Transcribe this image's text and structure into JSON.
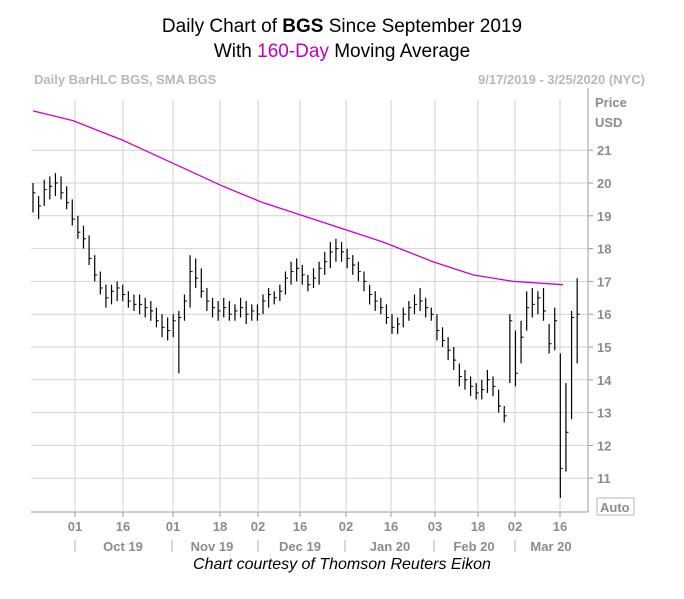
{
  "header": {
    "title_prefix": "Daily Chart of ",
    "ticker": "BGS",
    "title_suffix": " Since September 2019",
    "subtitle_prefix": "With ",
    "subtitle_highlight": "160-Day",
    "subtitle_suffix": " Moving Average",
    "highlight_color": "#c000c0"
  },
  "meta": {
    "left": "Daily BarHLC BGS, SMA BGS",
    "right": "9/17/2019 - 3/25/2020 (NYC)"
  },
  "credit": "Chart courtesy of Thomson Reuters Eikon",
  "chart_data": {
    "type": "bar-hlc",
    "y_axis": {
      "title_line1": "Price",
      "title_line2": "USD",
      "ticks": [
        "21",
        "20",
        "19",
        "18",
        "17",
        "16",
        "15",
        "14",
        "13",
        "12",
        "11"
      ],
      "ylim": [
        10,
        22
      ],
      "auto_label": "Auto"
    },
    "x_axis": {
      "day_ticks": [
        "01",
        "16",
        "01",
        "18",
        "02",
        "16",
        "02",
        "16",
        "03",
        "18",
        "02",
        "16"
      ],
      "month_labels": [
        "Oct 19",
        "Nov 19",
        "Dec 19",
        "Jan 20",
        "Feb 20",
        "Mar 20"
      ]
    },
    "grid": true,
    "price_color": "#000000",
    "ma_color": "#cc00cc",
    "ma_series": {
      "name": "SMA",
      "points": [
        [
          0,
          22.2
        ],
        [
          40,
          21.9
        ],
        [
          90,
          21.3
        ],
        [
          140,
          20.6
        ],
        [
          190,
          19.9
        ],
        [
          230,
          19.4
        ],
        [
          270,
          19.0
        ],
        [
          310,
          18.6
        ],
        [
          350,
          18.2
        ],
        [
          400,
          17.6
        ],
        [
          440,
          17.2
        ],
        [
          480,
          17.0
        ],
        [
          530,
          16.9
        ]
      ]
    },
    "bars": [
      [
        0,
        20.0,
        19.1,
        19.7
      ],
      [
        3,
        19.6,
        18.9,
        19.3
      ],
      [
        6,
        20.1,
        19.3,
        19.8
      ],
      [
        9,
        20.2,
        19.5,
        19.9
      ],
      [
        12,
        20.3,
        19.6,
        20.0
      ],
      [
        15,
        20.2,
        19.5,
        19.7
      ],
      [
        18,
        19.9,
        19.2,
        19.4
      ],
      [
        21,
        19.5,
        18.7,
        18.9
      ],
      [
        24,
        19.0,
        18.3,
        18.5
      ],
      [
        27,
        18.7,
        18.0,
        18.3
      ],
      [
        30,
        18.4,
        17.5,
        17.7
      ],
      [
        33,
        17.8,
        17.0,
        17.2
      ],
      [
        36,
        17.3,
        16.6,
        16.8
      ],
      [
        39,
        16.9,
        16.2,
        16.5
      ],
      [
        42,
        16.9,
        16.3,
        16.7
      ],
      [
        45,
        17.0,
        16.4,
        16.8
      ],
      [
        48,
        16.9,
        16.4,
        16.6
      ],
      [
        51,
        16.7,
        16.2,
        16.4
      ],
      [
        54,
        16.6,
        16.1,
        16.3
      ],
      [
        57,
        16.6,
        16.0,
        16.3
      ],
      [
        60,
        16.5,
        15.9,
        16.2
      ],
      [
        63,
        16.4,
        15.8,
        16.1
      ],
      [
        66,
        16.2,
        15.6,
        15.8
      ],
      [
        69,
        16.0,
        15.3,
        15.6
      ],
      [
        72,
        15.9,
        15.2,
        15.5
      ],
      [
        75,
        16.0,
        15.3,
        15.8
      ],
      [
        78,
        16.1,
        14.2,
        15.9
      ],
      [
        81,
        16.6,
        15.8,
        16.4
      ],
      [
        84,
        17.8,
        16.2,
        17.3
      ],
      [
        87,
        17.7,
        16.8,
        17.1
      ],
      [
        90,
        17.4,
        16.5,
        16.7
      ],
      [
        93,
        16.8,
        16.1,
        16.4
      ],
      [
        96,
        16.5,
        15.9,
        16.2
      ],
      [
        99,
        16.4,
        15.8,
        16.1
      ],
      [
        102,
        16.5,
        15.9,
        16.2
      ],
      [
        105,
        16.4,
        15.8,
        16.0
      ],
      [
        108,
        16.3,
        15.8,
        16.1
      ],
      [
        111,
        16.5,
        15.9,
        16.2
      ],
      [
        114,
        16.4,
        15.7,
        16.0
      ],
      [
        117,
        16.3,
        15.8,
        16.1
      ],
      [
        120,
        16.3,
        15.8,
        16.0
      ],
      [
        123,
        16.6,
        16.0,
        16.4
      ],
      [
        126,
        16.8,
        16.2,
        16.6
      ],
      [
        129,
        16.7,
        16.3,
        16.5
      ],
      [
        132,
        16.9,
        16.4,
        16.7
      ],
      [
        135,
        17.3,
        16.6,
        17.1
      ],
      [
        138,
        17.6,
        16.9,
        17.3
      ],
      [
        141,
        17.7,
        17.0,
        17.4
      ],
      [
        144,
        17.5,
        16.9,
        17.2
      ],
      [
        147,
        17.2,
        16.7,
        16.9
      ],
      [
        150,
        17.4,
        16.8,
        17.1
      ],
      [
        153,
        17.6,
        16.9,
        17.4
      ],
      [
        156,
        17.9,
        17.2,
        17.6
      ],
      [
        159,
        18.2,
        17.4,
        17.9
      ],
      [
        162,
        18.3,
        17.6,
        18.0
      ],
      [
        165,
        18.2,
        17.6,
        17.9
      ],
      [
        168,
        18.0,
        17.4,
        17.7
      ],
      [
        171,
        17.8,
        17.2,
        17.5
      ],
      [
        174,
        17.6,
        17.0,
        17.3
      ],
      [
        177,
        17.3,
        16.7,
        17.0
      ],
      [
        180,
        16.9,
        16.3,
        16.6
      ],
      [
        183,
        16.7,
        16.1,
        16.4
      ],
      [
        186,
        16.5,
        16.0,
        16.2
      ],
      [
        189,
        16.3,
        15.7,
        15.9
      ],
      [
        192,
        16.0,
        15.4,
        15.6
      ],
      [
        195,
        15.9,
        15.4,
        15.7
      ],
      [
        198,
        16.2,
        15.6,
        16.0
      ],
      [
        201,
        16.4,
        15.8,
        16.2
      ],
      [
        204,
        16.6,
        16.0,
        16.3
      ],
      [
        207,
        16.8,
        16.1,
        16.4
      ],
      [
        210,
        16.5,
        15.9,
        16.2
      ],
      [
        213,
        16.2,
        15.8,
        16.0
      ],
      [
        216,
        16.0,
        15.2,
        15.5
      ],
      [
        219,
        15.6,
        15.0,
        15.2
      ],
      [
        222,
        15.3,
        14.6,
        14.9
      ],
      [
        225,
        15.0,
        14.3,
        14.6
      ],
      [
        228,
        14.5,
        13.8,
        14.1
      ],
      [
        231,
        14.3,
        13.7,
        14.0
      ],
      [
        234,
        14.1,
        13.5,
        13.8
      ],
      [
        237,
        13.9,
        13.4,
        13.6
      ],
      [
        240,
        14.0,
        13.4,
        13.7
      ],
      [
        243,
        14.3,
        13.6,
        14.0
      ],
      [
        246,
        14.1,
        13.5,
        13.8
      ],
      [
        249,
        13.7,
        13.0,
        13.2
      ],
      [
        252,
        13.2,
        12.7,
        12.9
      ],
      [
        255,
        16.0,
        13.9,
        15.8
      ],
      [
        258,
        15.5,
        13.8,
        14.2
      ],
      [
        261,
        15.8,
        14.5,
        15.3
      ],
      [
        264,
        16.7,
        15.5,
        16.2
      ],
      [
        267,
        16.8,
        15.9,
        16.3
      ],
      [
        270,
        16.7,
        16.0,
        16.5
      ],
      [
        273,
        16.8,
        15.8,
        16.1
      ],
      [
        276,
        15.7,
        14.8,
        15.1
      ],
      [
        279,
        16.2,
        14.9,
        15.8
      ],
      [
        282,
        14.8,
        10.4,
        11.3
      ],
      [
        285,
        13.9,
        11.2,
        12.4
      ],
      [
        288,
        16.1,
        12.8,
        15.9
      ],
      [
        291,
        17.1,
        14.5,
        16.0
      ]
    ]
  }
}
